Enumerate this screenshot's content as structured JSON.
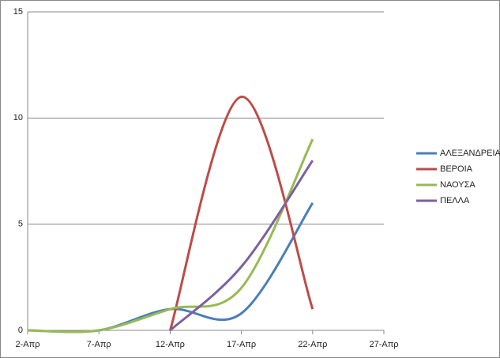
{
  "chart_data": {
    "type": "line",
    "smooth": true,
    "series": [
      {
        "name": "ΑΛΕΞΑΝΔΡΕΙΑ",
        "color": "#4a7ebb",
        "x": [
          2,
          7,
          12,
          17,
          22
        ],
        "values": [
          0,
          0,
          1,
          0.8,
          6
        ]
      },
      {
        "name": "ΒΕΡΟΙΑ",
        "color": "#be4b48",
        "x": [
          12,
          17,
          22
        ],
        "values": [
          0,
          11,
          1
        ]
      },
      {
        "name": "ΝΑΟΥΣΑ",
        "color": "#98b954",
        "x": [
          2,
          7,
          12,
          17,
          22
        ],
        "values": [
          0,
          0,
          1,
          2,
          9
        ]
      },
      {
        "name": "ΠΕΛΛΑ",
        "color": "#7d60a0",
        "x": [
          12,
          17,
          22
        ],
        "values": [
          0,
          3,
          8
        ]
      }
    ],
    "xlim": [
      2,
      27
    ],
    "xticks": [
      {
        "value": 2,
        "label": "2-Απρ"
      },
      {
        "value": 7,
        "label": "7-Απρ"
      },
      {
        "value": 12,
        "label": "12-Απρ"
      },
      {
        "value": 17,
        "label": "17-Απρ"
      },
      {
        "value": 22,
        "label": "22-Απρ"
      },
      {
        "value": 27,
        "label": "27-Απρ"
      }
    ],
    "ylim": [
      0,
      15
    ],
    "yticks": [
      0,
      5,
      10,
      15
    ],
    "grid": true,
    "legend": "right"
  }
}
